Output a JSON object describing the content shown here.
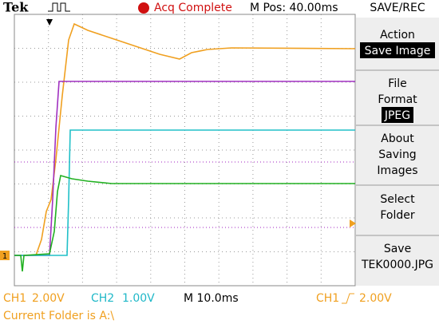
{
  "header": {
    "brand": "Tek",
    "status": "Acq Complete",
    "position": "M Pos: 40.00ms",
    "menu_title": "SAVE/REC"
  },
  "markers": {
    "ch1": "1"
  },
  "menu": [
    {
      "lines": [
        "Action"
      ],
      "value": "Save Image"
    },
    {
      "lines": [
        "File",
        "Format"
      ],
      "value": "JPEG"
    },
    {
      "lines": [
        "About",
        "Saving",
        "Images"
      ]
    },
    {
      "lines": [
        "Select",
        "Folder"
      ]
    },
    {
      "lines": [
        "Save"
      ],
      "value": "TEK0000.JPG"
    }
  ],
  "footer": {
    "ch1": "CH1",
    "ch1_scale": "2.00V",
    "ch2": "CH2",
    "ch2_scale": "1.00V",
    "timebase": "M 10.0ms",
    "trigger_source": "CH1",
    "trigger_level": "2.00V",
    "folder": "Current Folder is A:\\"
  }
}
